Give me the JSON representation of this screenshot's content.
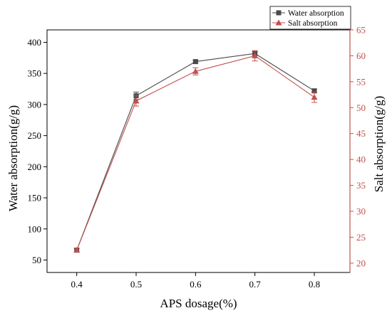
{
  "chart_data": {
    "type": "line",
    "title": "",
    "xlabel": "APS dosage(%)",
    "ylabel": "Water absorption(g/g)",
    "y2label": "Salt absorption(g/g)",
    "x": [
      0.4,
      0.5,
      0.6,
      0.7,
      0.8
    ],
    "xticks": [
      "0.4",
      "0.5",
      "0.6",
      "0.7",
      "0.8"
    ],
    "xlim": [
      0.35,
      0.86
    ],
    "ylim": [
      30,
      420
    ],
    "yticks": [
      50,
      100,
      150,
      200,
      250,
      300,
      350,
      400
    ],
    "y2lim": [
      18.2,
      65
    ],
    "y2ticks": [
      20,
      25,
      30,
      35,
      40,
      45,
      50,
      55,
      60,
      65
    ],
    "legend_position": "top-right",
    "series": [
      {
        "name": "Water absorption",
        "axis": "left",
        "values": [
          66,
          314,
          369,
          382,
          322
        ],
        "errors": [
          3,
          6,
          2,
          3,
          3
        ],
        "color": "#4a4a4a",
        "marker": "square"
      },
      {
        "name": "Salt absorption",
        "axis": "right",
        "values": [
          22.5,
          51.3,
          57.0,
          60.0,
          52.0
        ],
        "errors": [
          0.4,
          1.0,
          0.7,
          1.0,
          1.0
        ],
        "color": "#c0504d",
        "marker": "triangle"
      }
    ]
  }
}
